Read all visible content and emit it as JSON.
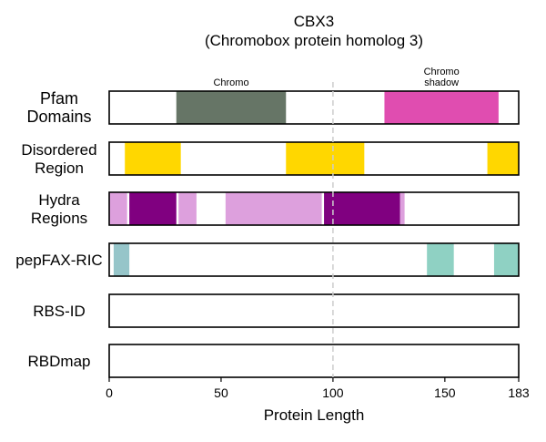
{
  "chart_data": {
    "type": "bar",
    "title": "CBX3",
    "subtitle": "(Chromobox protein homolog 3)",
    "xlabel": "Protein Length",
    "xlim": [
      0,
      183
    ],
    "xticks": [
      0,
      50,
      100,
      150,
      183
    ],
    "reference_line_x": 100,
    "tracks": [
      {
        "label_lines": [
          "Pfam",
          "Domains"
        ],
        "segments": [
          {
            "start": 30,
            "end": 79,
            "color": "#667566",
            "label_lines": [
              "Chromo"
            ]
          },
          {
            "start": 123,
            "end": 174,
            "color": "#E04DB0",
            "label_lines": [
              "Chromo",
              "shadow"
            ]
          }
        ]
      },
      {
        "label_lines": [
          "Disordered",
          "Region"
        ],
        "segments": [
          {
            "start": 7,
            "end": 32,
            "color": "#FFD700"
          },
          {
            "start": 79,
            "end": 114,
            "color": "#FFD700"
          },
          {
            "start": 169,
            "end": 183,
            "color": "#FFD700"
          }
        ]
      },
      {
        "label_lines": [
          "Hydra",
          "Regions"
        ],
        "segments": [
          {
            "start": 0,
            "end": 8,
            "color": "#DDA0DD"
          },
          {
            "start": 9,
            "end": 30,
            "color": "#800080"
          },
          {
            "start": 31,
            "end": 39,
            "color": "#DDA0DD"
          },
          {
            "start": 52,
            "end": 95,
            "color": "#DDA0DD"
          },
          {
            "start": 96,
            "end": 130,
            "color": "#800080"
          },
          {
            "start": 130,
            "end": 132,
            "color": "#DDA0DD"
          }
        ]
      },
      {
        "label_lines": [
          "pepFAX-RIC"
        ],
        "segments": [
          {
            "start": 2,
            "end": 9,
            "color": "#96C5C9"
          },
          {
            "start": 142,
            "end": 154,
            "color": "#8FD1C3"
          },
          {
            "start": 172,
            "end": 183,
            "color": "#8FD1C3"
          }
        ]
      },
      {
        "label_lines": [
          "RBS-ID"
        ],
        "segments": []
      },
      {
        "label_lines": [
          "RBDmap"
        ],
        "segments": []
      }
    ]
  }
}
